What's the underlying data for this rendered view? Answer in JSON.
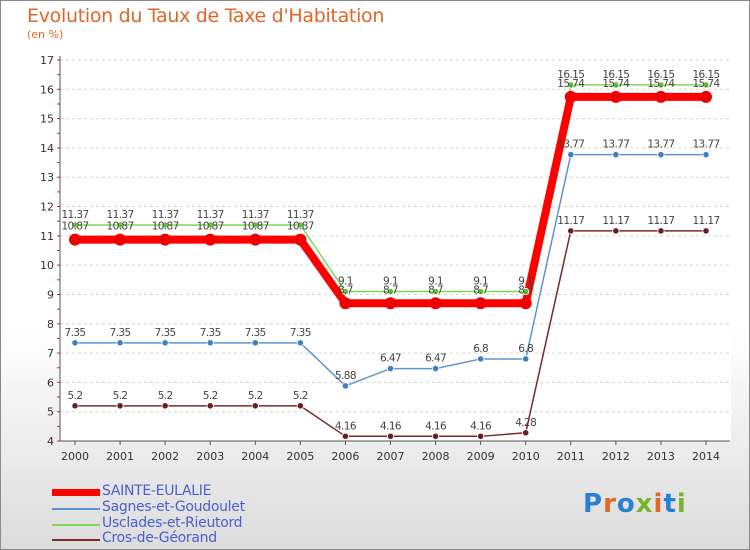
{
  "title": "Evolution du Taux de Taxe d'Habitation",
  "subtitle": "(en %)",
  "logo": {
    "text": "Proxiti",
    "letters": [
      "P",
      "r",
      "o",
      "x",
      "i",
      "t",
      "i"
    ],
    "colors": [
      "#2a7fd4",
      "#e0662a",
      "#2a7fd4",
      "#7ab32e",
      "#e0662a",
      "#2a7fd4",
      "#7ab32e"
    ]
  },
  "chart_data": {
    "type": "line",
    "title": "Evolution du Taux de Taxe d'Habitation",
    "ylabel": "(en %)",
    "xlabel": "",
    "ylim": [
      4,
      17
    ],
    "yticks": [
      "4",
      "5",
      "6",
      "7",
      "8",
      "9",
      "10",
      "11",
      "12",
      "13",
      "14",
      "15",
      "16",
      "17"
    ],
    "grid": true,
    "x": [
      "2000",
      "2001",
      "2002",
      "2003",
      "2004",
      "2005",
      "2006",
      "2007",
      "2008",
      "2009",
      "2010",
      "2011",
      "2012",
      "2013",
      "2014"
    ],
    "series": [
      {
        "name": "Usclades-et-Rieutord",
        "color": "#7ed957",
        "marker": "#66c23a",
        "labelcolor": "#444444",
        "labeloffset": -10,
        "values": [
          11.37,
          11.37,
          11.37,
          11.37,
          11.37,
          11.37,
          9.1,
          9.1,
          9.1,
          9.1,
          9.1,
          16.15,
          16.15,
          16.15,
          16.15
        ],
        "labels": [
          "11.37",
          "11.37",
          "11.37",
          "11.37",
          "11.37",
          "11.37",
          "9.1",
          "9.1",
          "9.1",
          "9.1",
          "9.1",
          "16.15",
          "16.15",
          "16.15",
          "16.15"
        ]
      },
      {
        "name": "SAINTE-EULALIE",
        "color": "#ff0000",
        "marker": "#ee0000",
        "labelcolor": "#444444",
        "labeloffset": -13,
        "values": [
          10.87,
          10.87,
          10.87,
          10.87,
          10.87,
          10.87,
          8.7,
          8.7,
          8.7,
          8.7,
          8.7,
          15.74,
          15.74,
          15.74,
          15.74
        ],
        "labels": [
          "10.87",
          "10.87",
          "10.87",
          "10.87",
          "10.87",
          "10.87",
          "8.7",
          "8.7",
          "8.7",
          "8.7",
          "8.7",
          "15.74",
          "15.74",
          "15.74",
          "15.74"
        ]
      },
      {
        "name": "Sagnes-et-Goudoulet",
        "color": "#5b95d3",
        "marker": "#3f7fc4",
        "labelcolor": "#444444",
        "labeloffset": -10,
        "values": [
          7.35,
          7.35,
          7.35,
          7.35,
          7.35,
          7.35,
          5.88,
          6.47,
          6.47,
          6.8,
          6.8,
          13.77,
          13.77,
          13.77,
          13.77
        ],
        "labels": [
          "7.35",
          "7.35",
          "7.35",
          "7.35",
          "7.35",
          "7.35",
          "5.88",
          "6.47",
          "6.47",
          "6.8",
          "6.8",
          "13.77",
          "13.77",
          "13.77",
          "13.77"
        ]
      },
      {
        "name": "Cros-de-Géorand",
        "color": "#7a2a2a",
        "marker": "#6a1f1f",
        "labelcolor": "#444444",
        "labeloffset": -10,
        "values": [
          5.2,
          5.2,
          5.2,
          5.2,
          5.2,
          5.2,
          4.16,
          4.16,
          4.16,
          4.16,
          4.28,
          11.17,
          11.17,
          11.17,
          11.17
        ],
        "labels": [
          "5.2",
          "5.2",
          "5.2",
          "5.2",
          "5.2",
          "5.2",
          "4.16",
          "4.16",
          "4.16",
          "4.16",
          "4.28",
          "11.17",
          "11.17",
          "11.17",
          "11.17"
        ]
      }
    ],
    "legend": [
      {
        "name": "SAINTE-EULALIE",
        "color": "#ff0000",
        "thick": true
      },
      {
        "name": "Sagnes-et-Goudoulet",
        "color": "#5b95d3",
        "thick": false
      },
      {
        "name": "Usclades-et-Rieutord",
        "color": "#7ed957",
        "thick": false
      },
      {
        "name": "Cros-de-Géorand",
        "color": "#7a2a2a",
        "thick": false
      }
    ],
    "legend_position": "bottom-left"
  }
}
